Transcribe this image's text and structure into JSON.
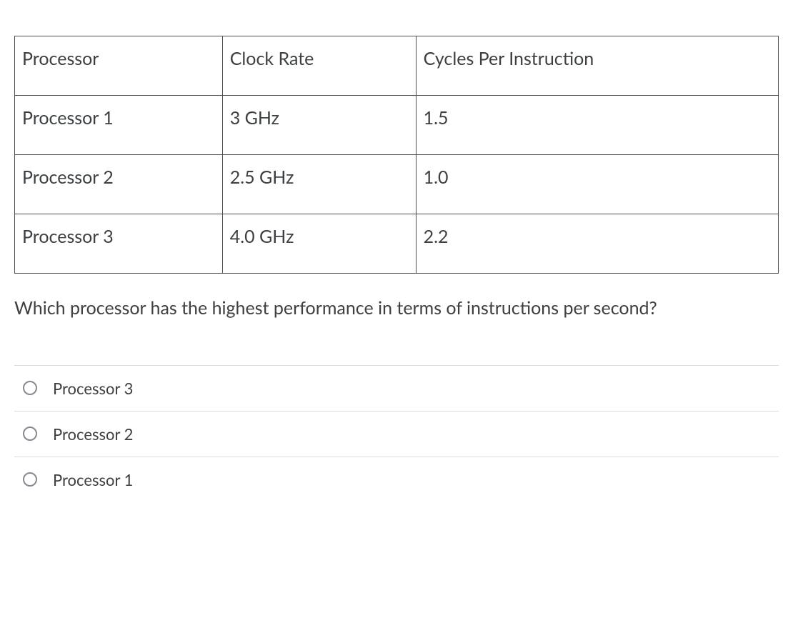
{
  "table": {
    "columns": [
      "Processor",
      "Clock Rate",
      "Cycles Per Instruction"
    ],
    "rows": [
      [
        "Processor 1",
        "3 GHz",
        "1.5"
      ],
      [
        "Processor 2",
        "2.5 GHz",
        "1.0"
      ],
      [
        "Processor 3",
        "4.0 GHz",
        "2.2"
      ]
    ],
    "border_color": "#4a4f55",
    "text_color": "#3c4043",
    "font_size": 25
  },
  "question": {
    "text": "Which processor has the highest performance in terms of instructions per second?",
    "font_size": 25,
    "text_color": "#3c4043"
  },
  "options": [
    {
      "label": "Processor 3"
    },
    {
      "label": "Processor 2"
    },
    {
      "label": "Processor 1"
    }
  ],
  "styling": {
    "option_border_color": "#d9dadb",
    "radio_border_color": "#848992",
    "option_font_size": 22,
    "background_color": "#ffffff"
  }
}
